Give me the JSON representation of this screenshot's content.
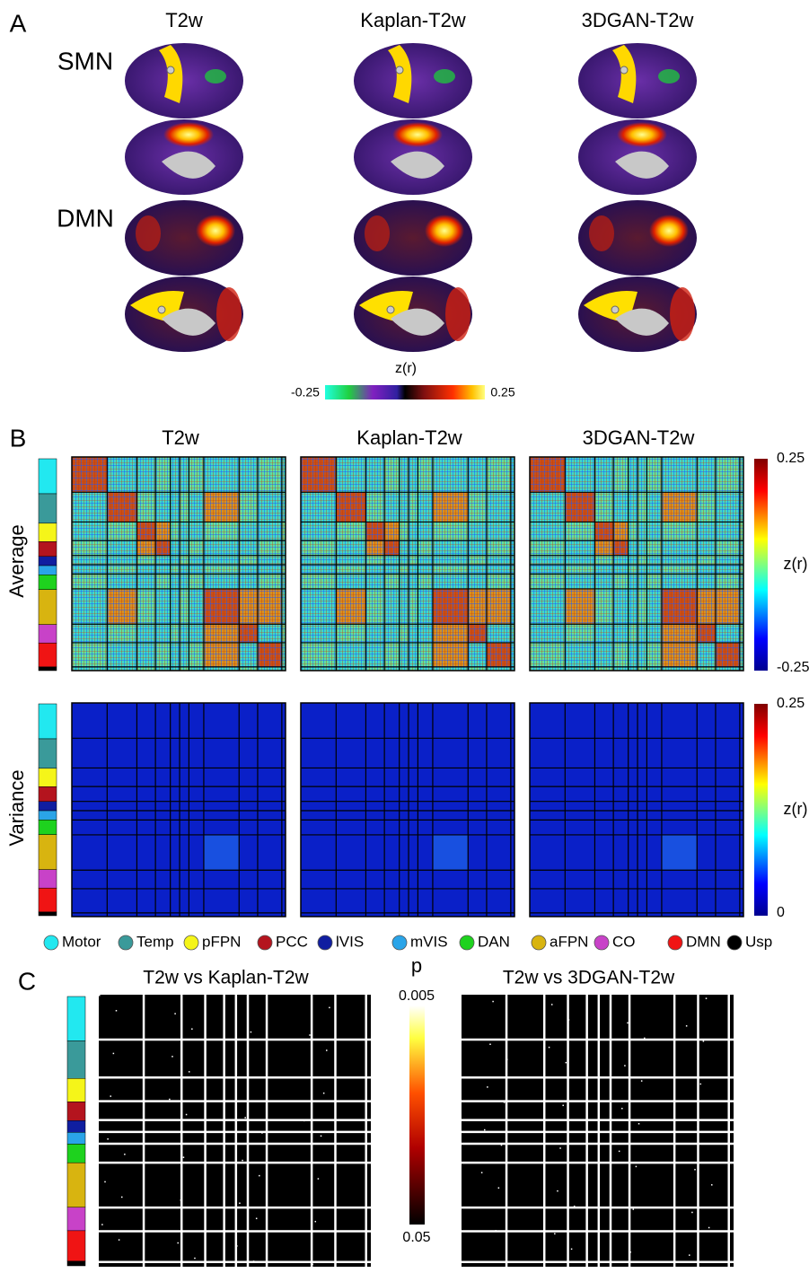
{
  "panels": [
    {
      "label": "A",
      "columns": [
        "T2w",
        "Kaplan-T2w",
        "3DGAN-T2w"
      ],
      "rows": [
        "SMN",
        "DMN"
      ],
      "colorbar": {
        "title": "z(r)",
        "min": -0.25,
        "max": 0.25
      }
    },
    {
      "label": "B",
      "columns": [
        "T2w",
        "Kaplan-T2w",
        "3DGAN-T2w"
      ],
      "rows": [
        "Average",
        "Variance"
      ],
      "colorbars": [
        {
          "title": "z(r)",
          "max": 0.25,
          "min": -0.25
        },
        {
          "title": "z(r)",
          "max": 0.25,
          "min": 0
        }
      ],
      "networks": [
        {
          "name": "Motor",
          "color": "#22e8f0"
        },
        {
          "name": "Temp",
          "color": "#3a9a9a"
        },
        {
          "name": "pFPN",
          "color": "#f5f519"
        },
        {
          "name": "PCC",
          "color": "#b4141e"
        },
        {
          "name": "lVIS",
          "color": "#101ea0"
        },
        {
          "name": "mVIS",
          "color": "#2aa4e8"
        },
        {
          "name": "DAN",
          "color": "#1ed21e"
        },
        {
          "name": "aFPN",
          "color": "#d8b410"
        },
        {
          "name": "CO",
          "color": "#c842c8"
        },
        {
          "name": "DMN",
          "color": "#f01414"
        },
        {
          "name": "Usp",
          "color": "#000000"
        }
      ]
    },
    {
      "label": "C",
      "titles": [
        "T2w vs Kaplan-T2w",
        "T2w vs 3DGAN-T2w"
      ],
      "colorbar": {
        "title": "p",
        "max": 0.005,
        "min": 0.05
      }
    }
  ]
}
